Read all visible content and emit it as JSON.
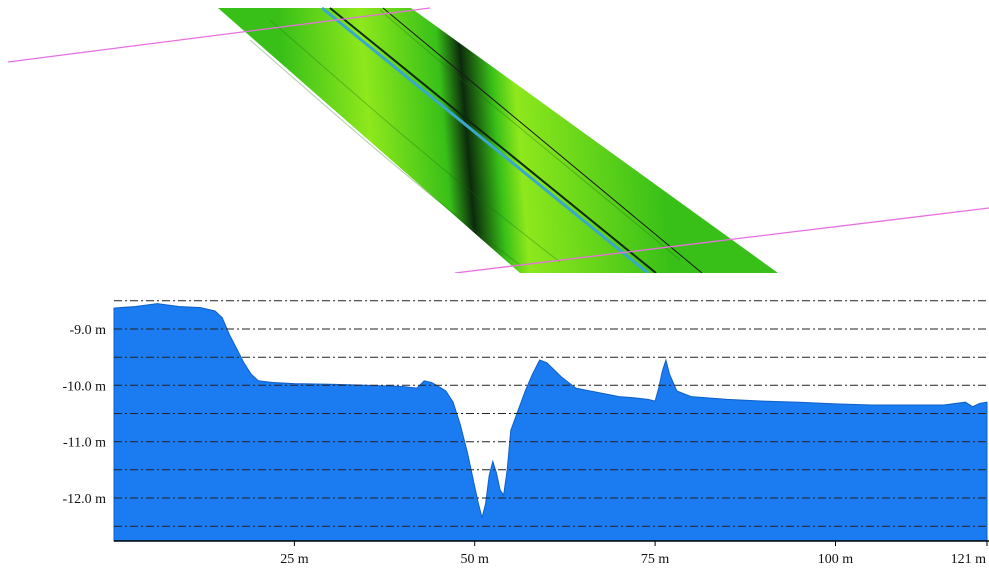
{
  "colors": {
    "profile_fill": "#1a7cf0",
    "survey_line": "#e870e0",
    "gridline": "#222222",
    "terrain_light": "#8ee81c",
    "terrain_mid": "#38c018",
    "terrain_dark": "#0c2a0c",
    "channel_strip": "#3aa8c8"
  },
  "icons": [
    "bathymetry-surface-image"
  ],
  "chart_data": {
    "type": "area",
    "title": "",
    "xlabel": "",
    "ylabel": "",
    "xlim": [
      0,
      121
    ],
    "ylim": [
      -12.55,
      -8.45
    ],
    "grid": "horizontal dash-dot lines every 0.5 m",
    "x_ticks": [
      {
        "value": 25,
        "label": "25 m"
      },
      {
        "value": 50,
        "label": "50 m"
      },
      {
        "value": 75,
        "label": "75 m"
      },
      {
        "value": 100,
        "label": "100 m"
      },
      {
        "value": 121,
        "label": "121 m"
      }
    ],
    "y_ticks": [
      {
        "value": -9.0,
        "label": "-9.0 m"
      },
      {
        "value": -10.0,
        "label": "-10.0 m"
      },
      {
        "value": -11.0,
        "label": "-11.0 m"
      },
      {
        "value": -12.0,
        "label": "-12.0 m"
      }
    ],
    "gridlines": [
      -8.5,
      -9.0,
      -9.5,
      -10.0,
      -10.5,
      -11.0,
      -11.5,
      -12.0,
      -12.5
    ],
    "series": [
      {
        "x": [
          0,
          3,
          6,
          9,
          12,
          14,
          15,
          16,
          17,
          18,
          19,
          20,
          22,
          25,
          30,
          35,
          40,
          42,
          43,
          44,
          45,
          46,
          47,
          48,
          49,
          50,
          50.5,
          51,
          51.5,
          52,
          52.5,
          53,
          53.5,
          54,
          54.5,
          55,
          56,
          57,
          58,
          59,
          60,
          62,
          64,
          66,
          68,
          70,
          72,
          74,
          75,
          75.5,
          76,
          76.5,
          77,
          78,
          80,
          85,
          90,
          95,
          100,
          105,
          110,
          115,
          118,
          119,
          120,
          121
        ],
        "y": [
          -8.63,
          -8.6,
          -8.55,
          -8.6,
          -8.62,
          -8.68,
          -8.8,
          -9.1,
          -9.35,
          -9.6,
          -9.8,
          -9.92,
          -9.95,
          -9.97,
          -9.98,
          -10.0,
          -10.02,
          -10.05,
          -9.92,
          -9.95,
          -10.02,
          -10.1,
          -10.3,
          -10.7,
          -11.2,
          -11.8,
          -12.1,
          -12.35,
          -12.1,
          -11.6,
          -11.35,
          -11.55,
          -11.85,
          -11.95,
          -11.5,
          -10.8,
          -10.45,
          -10.1,
          -9.8,
          -9.55,
          -9.6,
          -9.85,
          -10.05,
          -10.1,
          -10.15,
          -10.2,
          -10.22,
          -10.25,
          -10.28,
          -10.05,
          -9.75,
          -9.55,
          -9.8,
          -10.1,
          -10.2,
          -10.25,
          -10.28,
          -10.3,
          -10.33,
          -10.35,
          -10.35,
          -10.35,
          -10.3,
          -10.38,
          -10.32,
          -10.3
        ]
      }
    ]
  }
}
